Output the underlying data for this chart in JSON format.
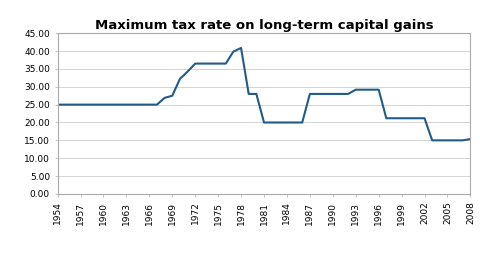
{
  "title": "Maximum tax rate on long-term capital gains",
  "years": [
    1954,
    1955,
    1956,
    1957,
    1958,
    1959,
    1960,
    1961,
    1962,
    1963,
    1964,
    1965,
    1966,
    1967,
    1968,
    1969,
    1970,
    1971,
    1972,
    1973,
    1974,
    1975,
    1976,
    1977,
    1978,
    1979,
    1980,
    1981,
    1982,
    1983,
    1984,
    1985,
    1986,
    1987,
    1988,
    1989,
    1990,
    1991,
    1992,
    1993,
    1994,
    1995,
    1996,
    1997,
    1998,
    1999,
    2000,
    2001,
    2002,
    2003,
    2004,
    2005,
    2006,
    2007,
    2008
  ],
  "values": [
    25.0,
    25.0,
    25.0,
    25.0,
    25.0,
    25.0,
    25.0,
    25.0,
    25.0,
    25.0,
    25.0,
    25.0,
    25.0,
    25.0,
    26.9,
    27.5,
    32.21,
    34.25,
    36.5,
    36.5,
    36.5,
    36.5,
    36.5,
    39.875,
    40.875,
    28.0,
    28.0,
    20.0,
    20.0,
    20.0,
    20.0,
    20.0,
    20.0,
    28.0,
    28.0,
    28.0,
    28.0,
    28.0,
    28.0,
    29.19,
    29.19,
    29.19,
    29.19,
    21.19,
    21.19,
    21.19,
    21.19,
    21.19,
    21.19,
    15.0,
    15.0,
    15.0,
    15.0,
    15.0,
    15.35
  ],
  "xlim": [
    1954,
    2008
  ],
  "ylim": [
    0,
    45
  ],
  "yticks": [
    0.0,
    5.0,
    10.0,
    15.0,
    20.0,
    25.0,
    30.0,
    35.0,
    40.0,
    45.0
  ],
  "xticks": [
    1954,
    1957,
    1960,
    1963,
    1966,
    1969,
    1972,
    1975,
    1978,
    1981,
    1984,
    1987,
    1990,
    1993,
    1996,
    1999,
    2002,
    2005,
    2008
  ],
  "line_color": "#1F5C8B",
  "line_width": 1.5,
  "bg_color": "#FFFFFF",
  "plot_bg_color": "#FFFFFF",
  "grid_color": "#CCCCCC",
  "title_fontsize": 9.5,
  "tick_fontsize": 6.5
}
